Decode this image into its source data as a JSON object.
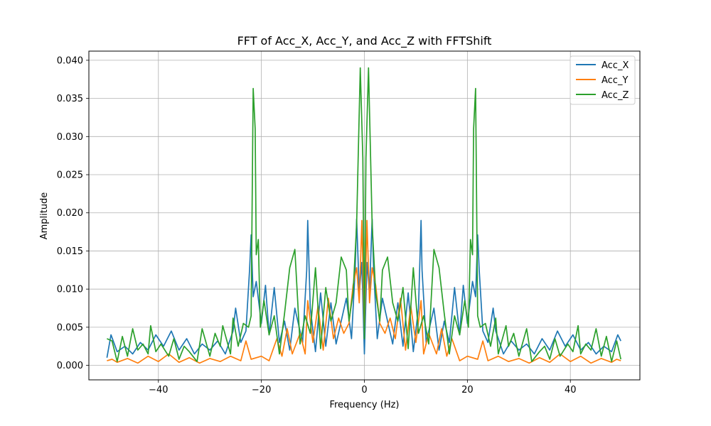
{
  "chart_data": {
    "type": "line",
    "title": "FFT of Acc_X, Acc_Y, and Acc_Z with FFTShift",
    "xlabel": "Frequency (Hz)",
    "ylabel": "Amplitude",
    "xlim": [
      -53.5,
      53.5
    ],
    "ylim": [
      -0.0019,
      0.0412
    ],
    "xticks": [
      -40,
      -20,
      0,
      20,
      40
    ],
    "xtick_labels": [
      "−40",
      "−20",
      "0",
      "20",
      "40"
    ],
    "yticks": [
      0.0,
      0.005,
      0.01,
      0.015,
      0.02,
      0.025,
      0.03,
      0.035,
      0.04
    ],
    "ytick_labels": [
      "0.000",
      "0.005",
      "0.010",
      "0.015",
      "0.020",
      "0.025",
      "0.030",
      "0.035",
      "0.040"
    ],
    "grid": true,
    "legend_position": "upper right",
    "series": [
      {
        "name": "Acc_X",
        "color": "#1f77b4",
        "points": [
          [
            -50,
            0.001
          ],
          [
            -49.2,
            0.004
          ],
          [
            -48,
            0.0018
          ],
          [
            -46.5,
            0.0025
          ],
          [
            -45,
            0.0015
          ],
          [
            -43.5,
            0.003
          ],
          [
            -42,
            0.002
          ],
          [
            -40.5,
            0.004
          ],
          [
            -39,
            0.0025
          ],
          [
            -37.5,
            0.0045
          ],
          [
            -36,
            0.002
          ],
          [
            -34.5,
            0.0035
          ],
          [
            -33,
            0.0015
          ],
          [
            -31.5,
            0.0028
          ],
          [
            -30,
            0.002
          ],
          [
            -28.5,
            0.0032
          ],
          [
            -27,
            0.0015
          ],
          [
            -25.5,
            0.0045
          ],
          [
            -25,
            0.0075
          ],
          [
            -24,
            0.003
          ],
          [
            -23,
            0.0045
          ],
          [
            -22.3,
            0.0125
          ],
          [
            -22,
            0.0171
          ],
          [
            -21.6,
            0.009
          ],
          [
            -21,
            0.011
          ],
          [
            -20,
            0.0055
          ],
          [
            -19.2,
            0.0105
          ],
          [
            -18.5,
            0.004
          ],
          [
            -17.5,
            0.0102
          ],
          [
            -16.5,
            0.003
          ],
          [
            -15.5,
            0.0058
          ],
          [
            -14.5,
            0.002
          ],
          [
            -13.5,
            0.0075
          ],
          [
            -12,
            0.003
          ],
          [
            -11.2,
            0.0125
          ],
          [
            -11,
            0.019
          ],
          [
            -10.5,
            0.0075
          ],
          [
            -9.5,
            0.0018
          ],
          [
            -8.5,
            0.0095
          ],
          [
            -7.5,
            0.0025
          ],
          [
            -6.5,
            0.0082
          ],
          [
            -5.5,
            0.0028
          ],
          [
            -4.5,
            0.0058
          ],
          [
            -3.5,
            0.0088
          ],
          [
            -2.5,
            0.0035
          ],
          [
            -1.8,
            0.0125
          ],
          [
            -1.5,
            0.0192
          ],
          [
            -1,
            0.0095
          ],
          [
            -0.5,
            0.0135
          ],
          [
            0,
            0.0015
          ],
          [
            0.5,
            0.0135
          ],
          [
            1,
            0.0095
          ],
          [
            1.5,
            0.0192
          ],
          [
            1.8,
            0.0125
          ],
          [
            2.5,
            0.0035
          ],
          [
            3.5,
            0.0088
          ],
          [
            4.5,
            0.0058
          ],
          [
            5.5,
            0.0028
          ],
          [
            6.5,
            0.0082
          ],
          [
            7.5,
            0.0025
          ],
          [
            8.5,
            0.0095
          ],
          [
            9.5,
            0.0018
          ],
          [
            10.5,
            0.0075
          ],
          [
            11,
            0.019
          ],
          [
            11.2,
            0.0125
          ],
          [
            12,
            0.003
          ],
          [
            13.5,
            0.0075
          ],
          [
            14.5,
            0.002
          ],
          [
            15.5,
            0.0058
          ],
          [
            16.5,
            0.003
          ],
          [
            17.5,
            0.0102
          ],
          [
            18.5,
            0.004
          ],
          [
            19.2,
            0.0105
          ],
          [
            20,
            0.0055
          ],
          [
            21,
            0.011
          ],
          [
            21.6,
            0.009
          ],
          [
            22,
            0.0171
          ],
          [
            22.3,
            0.0125
          ],
          [
            23,
            0.0045
          ],
          [
            24,
            0.003
          ],
          [
            25,
            0.0075
          ],
          [
            25.5,
            0.0045
          ],
          [
            27,
            0.0015
          ],
          [
            28.5,
            0.0032
          ],
          [
            30,
            0.002
          ],
          [
            31.5,
            0.0028
          ],
          [
            33,
            0.0015
          ],
          [
            34.5,
            0.0035
          ],
          [
            36,
            0.002
          ],
          [
            37.5,
            0.0045
          ],
          [
            39,
            0.0025
          ],
          [
            40.5,
            0.004
          ],
          [
            42,
            0.002
          ],
          [
            43.5,
            0.003
          ],
          [
            45,
            0.0015
          ],
          [
            46.5,
            0.0025
          ],
          [
            48,
            0.0018
          ],
          [
            49.2,
            0.004
          ],
          [
            49.8,
            0.0032
          ]
        ]
      },
      {
        "name": "Acc_Y",
        "color": "#ff7f0e",
        "points": [
          [
            -50,
            0.0006
          ],
          [
            -49,
            0.0008
          ],
          [
            -48,
            0.0004
          ],
          [
            -46,
            0.0009
          ],
          [
            -44,
            0.0003
          ],
          [
            -42,
            0.0012
          ],
          [
            -40,
            0.0005
          ],
          [
            -38,
            0.0015
          ],
          [
            -36,
            0.0004
          ],
          [
            -34,
            0.001
          ],
          [
            -32,
            0.0003
          ],
          [
            -30,
            0.0009
          ],
          [
            -28,
            0.0005
          ],
          [
            -26,
            0.0012
          ],
          [
            -24,
            0.0006
          ],
          [
            -23,
            0.0032
          ],
          [
            -22,
            0.0008
          ],
          [
            -20,
            0.0012
          ],
          [
            -18.5,
            0.0006
          ],
          [
            -17,
            0.0035
          ],
          [
            -16,
            0.0012
          ],
          [
            -15,
            0.0048
          ],
          [
            -14,
            0.0015
          ],
          [
            -12.5,
            0.0042
          ],
          [
            -11.5,
            0.0015
          ],
          [
            -11,
            0.0085
          ],
          [
            -10,
            0.003
          ],
          [
            -9,
            0.0078
          ],
          [
            -8,
            0.002
          ],
          [
            -7,
            0.0088
          ],
          [
            -6,
            0.0035
          ],
          [
            -5,
            0.0062
          ],
          [
            -4,
            0.0042
          ],
          [
            -3,
            0.0055
          ],
          [
            -2.2,
            0.0105
          ],
          [
            -1.5,
            0.0128
          ],
          [
            -1,
            0.0082
          ],
          [
            -0.5,
            0.019
          ],
          [
            0,
            0.0042
          ],
          [
            0.5,
            0.019
          ],
          [
            1,
            0.0082
          ],
          [
            1.5,
            0.0128
          ],
          [
            2.2,
            0.0105
          ],
          [
            3,
            0.0055
          ],
          [
            4,
            0.0042
          ],
          [
            5,
            0.0062
          ],
          [
            6,
            0.0035
          ],
          [
            7,
            0.0088
          ],
          [
            8,
            0.002
          ],
          [
            9,
            0.0078
          ],
          [
            10,
            0.003
          ],
          [
            11,
            0.0085
          ],
          [
            11.5,
            0.0015
          ],
          [
            12.5,
            0.0042
          ],
          [
            14,
            0.0015
          ],
          [
            15,
            0.0048
          ],
          [
            16,
            0.0012
          ],
          [
            17,
            0.0035
          ],
          [
            18.5,
            0.0006
          ],
          [
            20,
            0.0012
          ],
          [
            22,
            0.0008
          ],
          [
            23,
            0.0032
          ],
          [
            24,
            0.0006
          ],
          [
            26,
            0.0012
          ],
          [
            28,
            0.0005
          ],
          [
            30,
            0.0009
          ],
          [
            32,
            0.0003
          ],
          [
            34,
            0.001
          ],
          [
            36,
            0.0004
          ],
          [
            38,
            0.0015
          ],
          [
            40,
            0.0005
          ],
          [
            42,
            0.0012
          ],
          [
            44,
            0.0003
          ],
          [
            46,
            0.0009
          ],
          [
            48,
            0.0004
          ],
          [
            49,
            0.0008
          ],
          [
            49.8,
            0.0006
          ]
        ]
      },
      {
        "name": "Acc_Z",
        "color": "#2ca02c",
        "points": [
          [
            -50,
            0.0035
          ],
          [
            -49,
            0.0032
          ],
          [
            -48,
            0.0005
          ],
          [
            -47,
            0.0038
          ],
          [
            -46,
            0.0012
          ],
          [
            -45,
            0.0048
          ],
          [
            -44,
            0.002
          ],
          [
            -43,
            0.0028
          ],
          [
            -42,
            0.0015
          ],
          [
            -41.5,
            0.0052
          ],
          [
            -40.5,
            0.0018
          ],
          [
            -39.5,
            0.0028
          ],
          [
            -38,
            0.0012
          ],
          [
            -37,
            0.0035
          ],
          [
            -36,
            0.0008
          ],
          [
            -35,
            0.0025
          ],
          [
            -34,
            0.0018
          ],
          [
            -32.5,
            0.0005
          ],
          [
            -31.5,
            0.0048
          ],
          [
            -30,
            0.0012
          ],
          [
            -29,
            0.0042
          ],
          [
            -28,
            0.0025
          ],
          [
            -27.5,
            0.0052
          ],
          [
            -26,
            0.0015
          ],
          [
            -25.5,
            0.0062
          ],
          [
            -24.5,
            0.0025
          ],
          [
            -23.5,
            0.0055
          ],
          [
            -22.5,
            0.005
          ],
          [
            -22,
            0.0065
          ],
          [
            -21.6,
            0.0363
          ],
          [
            -21.2,
            0.031
          ],
          [
            -21,
            0.0145
          ],
          [
            -20.6,
            0.0165
          ],
          [
            -20.2,
            0.005
          ],
          [
            -19.5,
            0.0085
          ],
          [
            -18.5,
            0.004
          ],
          [
            -17.5,
            0.0065
          ],
          [
            -16.5,
            0.0015
          ],
          [
            -15.5,
            0.0068
          ],
          [
            -14.5,
            0.0128
          ],
          [
            -13.5,
            0.0152
          ],
          [
            -12.5,
            0.0028
          ],
          [
            -11.5,
            0.0065
          ],
          [
            -10.5,
            0.0042
          ],
          [
            -9.5,
            0.0128
          ],
          [
            -8.5,
            0.0022
          ],
          [
            -7.5,
            0.0102
          ],
          [
            -6.5,
            0.0058
          ],
          [
            -5.5,
            0.0082
          ],
          [
            -4.5,
            0.0142
          ],
          [
            -3.5,
            0.0125
          ],
          [
            -3,
            0.0058
          ],
          [
            -2.2,
            0.0095
          ],
          [
            -1.5,
            0.0185
          ],
          [
            -0.8,
            0.039
          ],
          [
            -0.3,
            0.0272
          ],
          [
            0,
            0.0035
          ],
          [
            0.3,
            0.0272
          ],
          [
            0.8,
            0.039
          ],
          [
            1.5,
            0.0185
          ],
          [
            2.2,
            0.0095
          ],
          [
            3,
            0.0058
          ],
          [
            3.5,
            0.0125
          ],
          [
            4.5,
            0.0142
          ],
          [
            5.5,
            0.0082
          ],
          [
            6.5,
            0.0058
          ],
          [
            7.5,
            0.0102
          ],
          [
            8.5,
            0.0022
          ],
          [
            9.5,
            0.0128
          ],
          [
            10.5,
            0.0042
          ],
          [
            11.5,
            0.0065
          ],
          [
            12.5,
            0.0028
          ],
          [
            13.5,
            0.0152
          ],
          [
            14.5,
            0.0128
          ],
          [
            15.5,
            0.0068
          ],
          [
            16.5,
            0.0015
          ],
          [
            17.5,
            0.0065
          ],
          [
            18.5,
            0.004
          ],
          [
            19.5,
            0.0085
          ],
          [
            20.2,
            0.005
          ],
          [
            20.6,
            0.0165
          ],
          [
            21,
            0.0145
          ],
          [
            21.2,
            0.031
          ],
          [
            21.6,
            0.0363
          ],
          [
            22,
            0.0065
          ],
          [
            22.5,
            0.005
          ],
          [
            23.5,
            0.0055
          ],
          [
            24.5,
            0.0025
          ],
          [
            25.5,
            0.0062
          ],
          [
            26,
            0.0015
          ],
          [
            27.5,
            0.0052
          ],
          [
            28,
            0.0025
          ],
          [
            29,
            0.0042
          ],
          [
            30,
            0.0012
          ],
          [
            31.5,
            0.0048
          ],
          [
            32.5,
            0.0005
          ],
          [
            34,
            0.0018
          ],
          [
            35,
            0.0025
          ],
          [
            36,
            0.0008
          ],
          [
            37,
            0.0035
          ],
          [
            38,
            0.0012
          ],
          [
            39.5,
            0.0028
          ],
          [
            40.5,
            0.0018
          ],
          [
            41.5,
            0.0052
          ],
          [
            42,
            0.0015
          ],
          [
            43,
            0.0028
          ],
          [
            44,
            0.002
          ],
          [
            45,
            0.0048
          ],
          [
            46,
            0.0012
          ],
          [
            47,
            0.0038
          ],
          [
            48,
            0.0005
          ],
          [
            49,
            0.0032
          ],
          [
            49.8,
            0.0008
          ]
        ]
      }
    ]
  }
}
